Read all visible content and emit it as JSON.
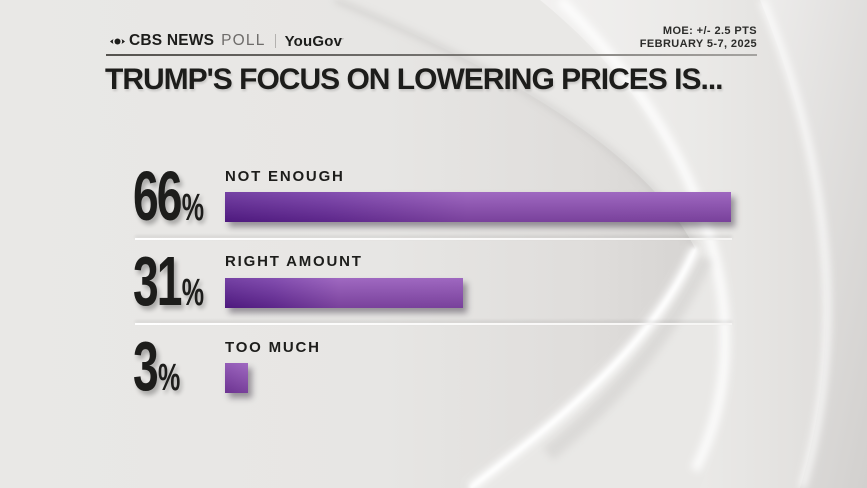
{
  "header": {
    "brand_cbs": "CBS NEWS",
    "brand_poll": "POLL",
    "brand_partner": "YouGov",
    "moe": "MOE: +/- 2.5 PTS",
    "dates": "FEBRUARY 5-7, 2025"
  },
  "title": "TRUMP'S FOCUS ON LOWERING PRICES IS...",
  "chart_data": {
    "type": "bar",
    "orientation": "horizontal",
    "title": "TRUMP'S FOCUS ON LOWERING PRICES IS...",
    "categories": [
      "NOT ENOUGH",
      "RIGHT AMOUNT",
      "TOO MUCH"
    ],
    "values": [
      66,
      31,
      3
    ],
    "unit": "%",
    "axis_max": 66,
    "grid": false,
    "legend": false,
    "value_labels": [
      "66%",
      "31%",
      "3%"
    ],
    "bar_color_dark": "#5a1d92",
    "bar_color_light": "#8d4cb5",
    "text_color": "#1d1d1b",
    "background_color": "#e9e8e6"
  }
}
